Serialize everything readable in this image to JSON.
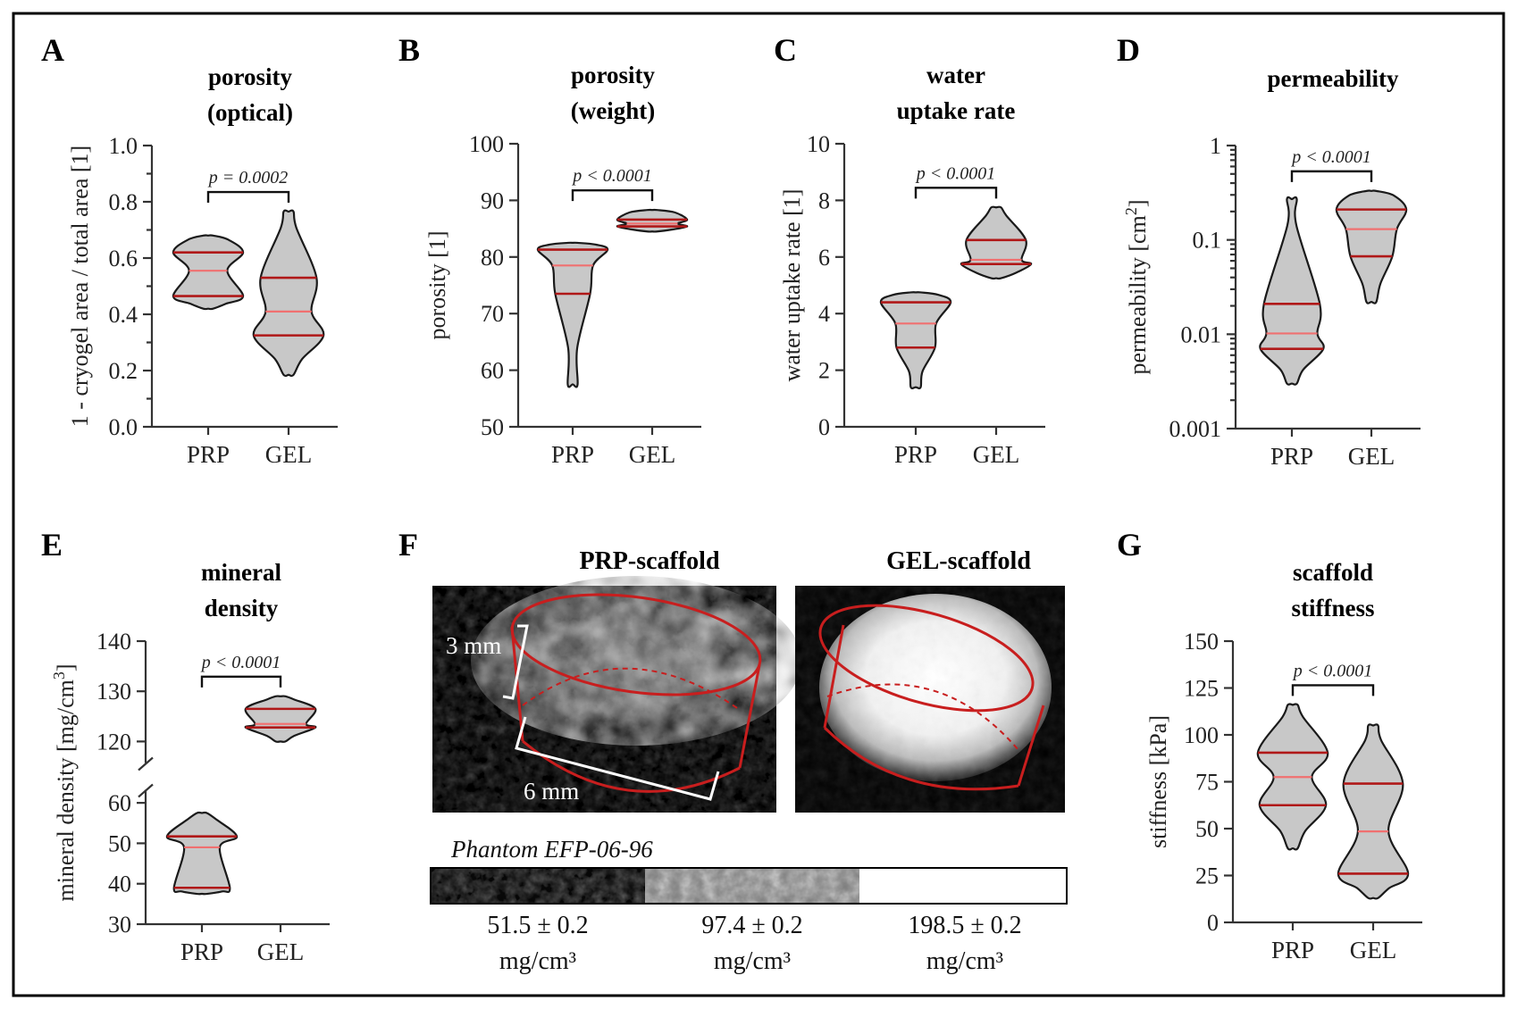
{
  "figure": {
    "panel_f": {
      "label": "F",
      "images": [
        {
          "title": "PRP-scaffold",
          "height_label": "3 mm",
          "width_label": "6 mm"
        },
        {
          "title": "GEL-scaffold"
        }
      ],
      "phantom_label": "Phantom EFP-06-96",
      "phantom_values": [
        "51.5 ± 0.2",
        "97.4 ± 0.2",
        "198.5 ± 0.2"
      ],
      "phantom_unit": "mg/cm³"
    }
  },
  "chart_data": [
    {
      "id": "A",
      "label": "A",
      "type": "violin",
      "title": [
        "porosity",
        "(optical)"
      ],
      "ylabel": "1 - cryogel area / total area [1]",
      "categories": [
        "PRP",
        "GEL"
      ],
      "ylim": [
        0,
        1.0
      ],
      "scale": "linear",
      "yticks": [
        0,
        0.2,
        0.4,
        0.6,
        0.8,
        1.0
      ],
      "ytick_labels": [
        "0.0",
        "0.2",
        "0.4",
        "0.6",
        "0.8",
        "1.0"
      ],
      "minor_ticks": true,
      "pvalue": "p = 0.0002",
      "series": [
        {
          "name": "PRP",
          "min": 0.42,
          "max": 0.68,
          "q1": 0.465,
          "median": 0.555,
          "q3": 0.62
        },
        {
          "name": "GEL",
          "min": 0.185,
          "max": 0.765,
          "q1": 0.325,
          "median": 0.41,
          "q3": 0.53
        }
      ]
    },
    {
      "id": "B",
      "label": "B",
      "type": "violin",
      "title": [
        "porosity",
        "(weight)"
      ],
      "ylabel": "porosity [1]",
      "categories": [
        "PRP",
        "GEL"
      ],
      "ylim": [
        50,
        100
      ],
      "scale": "linear",
      "yticks": [
        50,
        60,
        70,
        80,
        90,
        100
      ],
      "ytick_labels": [
        "50",
        "60",
        "70",
        "80",
        "90",
        "100"
      ],
      "minor_ticks": false,
      "pvalue": "p < 0.0001",
      "series": [
        {
          "name": "PRP",
          "min": 57.5,
          "max": 82.5,
          "q1": 73.5,
          "median": 78.5,
          "q3": 81.3
        },
        {
          "name": "GEL",
          "min": 84.5,
          "max": 88.3,
          "q1": 85.4,
          "median": 85.9,
          "q3": 86.6
        }
      ]
    },
    {
      "id": "C",
      "label": "C",
      "type": "violin",
      "title": [
        "water",
        "uptake rate"
      ],
      "ylabel": "water uptake rate [1]",
      "categories": [
        "PRP",
        "GEL"
      ],
      "ylim": [
        0,
        10
      ],
      "scale": "linear",
      "yticks": [
        0,
        2,
        4,
        6,
        8,
        10
      ],
      "ytick_labels": [
        "0",
        "2",
        "4",
        "6",
        "8",
        "10"
      ],
      "minor_ticks": false,
      "pvalue": "p < 0.0001",
      "series": [
        {
          "name": "PRP",
          "min": 1.4,
          "max": 4.75,
          "q1": 2.8,
          "median": 3.65,
          "q3": 4.4
        },
        {
          "name": "GEL",
          "min": 5.25,
          "max": 7.75,
          "q1": 5.75,
          "median": 5.9,
          "q3": 6.6
        }
      ]
    },
    {
      "id": "D",
      "label": "D",
      "type": "violin",
      "title": [
        "permeability"
      ],
      "ylabel": "permeability [cm²]",
      "categories": [
        "PRP",
        "GEL"
      ],
      "ylim": [
        0.001,
        1
      ],
      "scale": "log",
      "yticks": [
        0.001,
        0.01,
        0.1,
        1
      ],
      "ytick_labels": [
        "0.001",
        "0.01",
        "0.1",
        "1"
      ],
      "minor_ticks": true,
      "pvalue": "p < 0.0001",
      "series": [
        {
          "name": "PRP",
          "min": 0.003,
          "max": 0.27,
          "q1": 0.007,
          "median": 0.0102,
          "q3": 0.021
        },
        {
          "name": "GEL",
          "min": 0.022,
          "max": 0.33,
          "q1": 0.067,
          "median": 0.13,
          "q3": 0.21
        }
      ]
    },
    {
      "id": "E",
      "label": "E",
      "type": "violin",
      "title": [
        "mineral",
        "density"
      ],
      "ylabel": "mineral density [mg/cm³]",
      "categories": [
        "PRP",
        "GEL"
      ],
      "ylim": [
        30,
        140
      ],
      "scale": "broken",
      "axis_break": [
        65,
        115
      ],
      "yticks": [
        30,
        40,
        50,
        60,
        120,
        130,
        140
      ],
      "ytick_labels": [
        "30",
        "40",
        "50",
        "60",
        "120",
        "130",
        "140"
      ],
      "minor_ticks": false,
      "pvalue": "p < 0.0001",
      "series": [
        {
          "name": "PRP",
          "min": 37.5,
          "max": 57.5,
          "q1": 39.0,
          "median": 49.0,
          "q3": 51.7
        },
        {
          "name": "GEL",
          "min": 120.0,
          "max": 129.0,
          "q1": 122.8,
          "median": 123.5,
          "q3": 126.5
        }
      ]
    },
    {
      "id": "G",
      "label": "G",
      "type": "violin",
      "title": [
        "scaffold",
        "stiffness"
      ],
      "ylabel": "stiffness [kPa]",
      "categories": [
        "PRP",
        "GEL"
      ],
      "ylim": [
        0,
        150
      ],
      "scale": "linear",
      "yticks": [
        0,
        25,
        50,
        75,
        100,
        125,
        150
      ],
      "ytick_labels": [
        "0",
        "25",
        "50",
        "75",
        "100",
        "125",
        "150"
      ],
      "minor_ticks": false,
      "pvalue": "p < 0.0001",
      "series": [
        {
          "name": "PRP",
          "min": 39.5,
          "max": 116.0,
          "q1": 62.5,
          "median": 77.5,
          "q3": 90.5
        },
        {
          "name": "GEL",
          "min": 13.0,
          "max": 105.0,
          "q1": 26.0,
          "median": 48.5,
          "q3": 74.0
        }
      ]
    }
  ]
}
